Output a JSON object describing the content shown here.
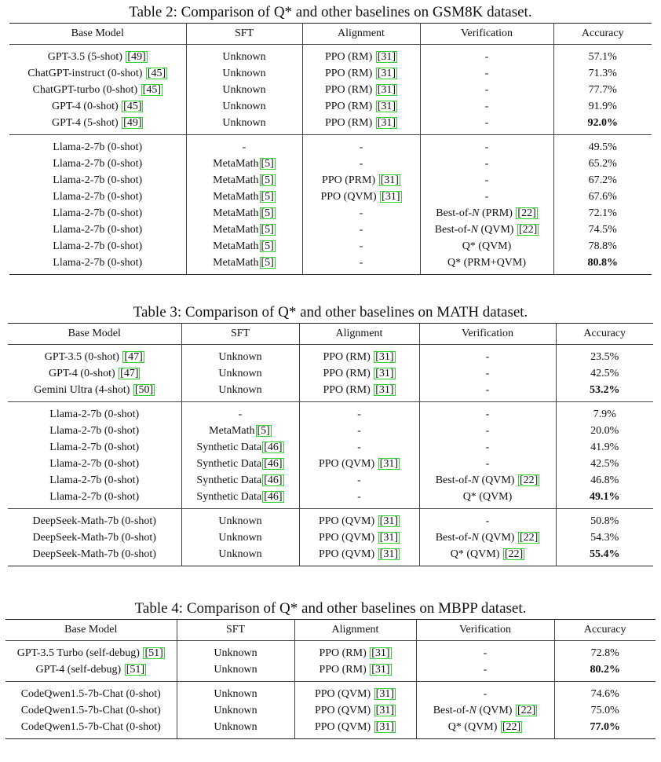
{
  "tables": [
    {
      "caption": "Table 2: Comparison of Q* and other baselines on GSM8K dataset.",
      "headers": [
        "Base Model",
        "SFT",
        "Alignment",
        "Verification",
        "Accuracy"
      ],
      "groups": [
        [
          [
            {
              "t": "GPT-3.5 (5-shot) ",
              "ref": "[49]"
            },
            {
              "t": "Unknown"
            },
            {
              "t": "PPO (RM) ",
              "ref": "[31]"
            },
            {
              "t": "-"
            },
            {
              "t": "57.1%"
            }
          ],
          [
            {
              "t": "ChatGPT-instruct (0-shot) ",
              "ref": "[45]"
            },
            {
              "t": "Unknown"
            },
            {
              "t": "PPO (RM) ",
              "ref": "[31]"
            },
            {
              "t": "-"
            },
            {
              "t": "71.3%"
            }
          ],
          [
            {
              "t": "ChatGPT-turbo (0-shot) ",
              "ref": "[45]"
            },
            {
              "t": "Unknown"
            },
            {
              "t": "PPO (RM) ",
              "ref": "[31]"
            },
            {
              "t": "-"
            },
            {
              "t": "77.7%"
            }
          ],
          [
            {
              "t": "GPT-4 (0-shot) ",
              "ref": "[45]"
            },
            {
              "t": "Unknown"
            },
            {
              "t": "PPO (RM) ",
              "ref": "[31]"
            },
            {
              "t": "-"
            },
            {
              "t": "91.9%"
            }
          ],
          [
            {
              "t": "GPT-4 (5-shot) ",
              "ref": "[49]"
            },
            {
              "t": "Unknown"
            },
            {
              "t": "PPO (RM) ",
              "ref": "[31]"
            },
            {
              "t": "-"
            },
            {
              "t": "92.0%",
              "bold": true
            }
          ]
        ],
        [
          [
            {
              "t": "Llama-2-7b (0-shot)"
            },
            {
              "t": "-"
            },
            {
              "t": "-"
            },
            {
              "t": "-"
            },
            {
              "t": "49.5%"
            }
          ],
          [
            {
              "t": "Llama-2-7b (0-shot)"
            },
            {
              "t": "MetaMath",
              "ref": "[5]"
            },
            {
              "t": "-"
            },
            {
              "t": "-"
            },
            {
              "t": "65.2%"
            }
          ],
          [
            {
              "t": "Llama-2-7b (0-shot)"
            },
            {
              "t": "MetaMath",
              "ref": "[5]"
            },
            {
              "t": "PPO (PRM) ",
              "ref": "[31]"
            },
            {
              "t": "-"
            },
            {
              "t": "67.2%"
            }
          ],
          [
            {
              "t": "Llama-2-7b (0-shot)"
            },
            {
              "t": "MetaMath",
              "ref": "[5]"
            },
            {
              "t": "PPO (QVM) ",
              "ref": "[31]"
            },
            {
              "t": "-"
            },
            {
              "t": "67.6%"
            }
          ],
          [
            {
              "t": "Llama-2-7b (0-shot)"
            },
            {
              "t": "MetaMath",
              "ref": "[5]"
            },
            {
              "t": "-"
            },
            {
              "t": "Best-of-",
              "it": "N",
              "t2": " (PRM) ",
              "ref": "[22]"
            },
            {
              "t": "72.1%"
            }
          ],
          [
            {
              "t": "Llama-2-7b (0-shot)"
            },
            {
              "t": "MetaMath",
              "ref": "[5]"
            },
            {
              "t": "-"
            },
            {
              "t": "Best-of-",
              "it": "N",
              "t2": " (QVM) ",
              "ref": "[22]"
            },
            {
              "t": "74.5%"
            }
          ],
          [
            {
              "t": "Llama-2-7b (0-shot)"
            },
            {
              "t": "MetaMath",
              "ref": "[5]"
            },
            {
              "t": "-"
            },
            {
              "t": "Q* (QVM)"
            },
            {
              "t": "78.8%"
            }
          ],
          [
            {
              "t": "Llama-2-7b (0-shot)"
            },
            {
              "t": "MetaMath",
              "ref": "[5]"
            },
            {
              "t": "-"
            },
            {
              "t": "Q* (PRM+QVM)"
            },
            {
              "t": "80.8%",
              "bold": true
            }
          ]
        ]
      ]
    },
    {
      "caption": "Table 3: Comparison of Q* and other baselines on MATH dataset.",
      "headers": [
        "Base Model",
        "SFT",
        "Alignment",
        "Verification",
        "Accuracy"
      ],
      "groups": [
        [
          [
            {
              "t": "GPT-3.5 (0-shot) ",
              "ref": "[47]"
            },
            {
              "t": "Unknown"
            },
            {
              "t": "PPO (RM) ",
              "ref": "[31]"
            },
            {
              "t": "-"
            },
            {
              "t": "23.5%"
            }
          ],
          [
            {
              "t": "GPT-4 (0-shot) ",
              "ref": "[47]"
            },
            {
              "t": "Unknown"
            },
            {
              "t": "PPO (RM) ",
              "ref": "[31]"
            },
            {
              "t": "-"
            },
            {
              "t": "42.5%"
            }
          ],
          [
            {
              "t": "Gemini Ultra (4-shot) ",
              "ref": "[50]"
            },
            {
              "t": "Unknown"
            },
            {
              "t": "PPO (RM) ",
              "ref": "[31]"
            },
            {
              "t": "-"
            },
            {
              "t": "53.2%",
              "bold": true
            }
          ]
        ],
        [
          [
            {
              "t": "Llama-2-7b (0-shot)"
            },
            {
              "t": "-"
            },
            {
              "t": "-"
            },
            {
              "t": "-"
            },
            {
              "t": "7.9%"
            }
          ],
          [
            {
              "t": "Llama-2-7b (0-shot)"
            },
            {
              "t": "MetaMath",
              "ref": "[5]"
            },
            {
              "t": "-"
            },
            {
              "t": "-"
            },
            {
              "t": "20.0%"
            }
          ],
          [
            {
              "t": "Llama-2-7b (0-shot)"
            },
            {
              "t": "Synthetic Data",
              "ref": "[46]"
            },
            {
              "t": "-"
            },
            {
              "t": "-"
            },
            {
              "t": "41.9%"
            }
          ],
          [
            {
              "t": "Llama-2-7b (0-shot)"
            },
            {
              "t": "Synthetic Data",
              "ref": "[46]"
            },
            {
              "t": "PPO (QVM) ",
              "ref": "[31]"
            },
            {
              "t": "-"
            },
            {
              "t": "42.5%"
            }
          ],
          [
            {
              "t": "Llama-2-7b (0-shot)"
            },
            {
              "t": "Synthetic Data",
              "ref": "[46]"
            },
            {
              "t": "-"
            },
            {
              "t": "Best-of-",
              "it": "N",
              "t2": " (QVM) ",
              "ref": "[22]"
            },
            {
              "t": "46.8%"
            }
          ],
          [
            {
              "t": "Llama-2-7b (0-shot)"
            },
            {
              "t": "Synthetic Data",
              "ref": "[46]"
            },
            {
              "t": "-"
            },
            {
              "t": "Q* (QVM)"
            },
            {
              "t": "49.1%",
              "bold": true
            }
          ]
        ],
        [
          [
            {
              "t": "DeepSeek-Math-7b (0-shot)"
            },
            {
              "t": "Unknown"
            },
            {
              "t": "PPO (QVM) ",
              "ref": "[31]"
            },
            {
              "t": "-"
            },
            {
              "t": "50.8%"
            }
          ],
          [
            {
              "t": "DeepSeek-Math-7b (0-shot)"
            },
            {
              "t": "Unknown"
            },
            {
              "t": "PPO (QVM) ",
              "ref": "[31]"
            },
            {
              "t": "Best-of-",
              "it": "N",
              "t2": " (QVM) ",
              "ref": "[22]"
            },
            {
              "t": "54.3%"
            }
          ],
          [
            {
              "t": "DeepSeek-Math-7b (0-shot)"
            },
            {
              "t": "Unknown"
            },
            {
              "t": "PPO (QVM) ",
              "ref": "[31]"
            },
            {
              "t": "Q* (QVM) ",
              "ref": "[22]"
            },
            {
              "t": "55.4%",
              "bold": true
            }
          ]
        ]
      ]
    },
    {
      "caption": "Table 4: Comparison of Q* and other baselines on MBPP dataset.",
      "headers": [
        "Base Model",
        "SFT",
        "Alignment",
        "Verification",
        "Accuracy"
      ],
      "groups": [
        [
          [
            {
              "t": "GPT-3.5 Turbo (self-debug) ",
              "ref": "[51]"
            },
            {
              "t": "Unknown"
            },
            {
              "t": "PPO (RM) ",
              "ref": "[31]"
            },
            {
              "t": "-"
            },
            {
              "t": "72.8%"
            }
          ],
          [
            {
              "t": "GPT-4 (self-debug) ",
              "ref": "[51]"
            },
            {
              "t": "Unknown"
            },
            {
              "t": "PPO (RM) ",
              "ref": "[31]"
            },
            {
              "t": "-"
            },
            {
              "t": "80.2%",
              "bold": true
            }
          ]
        ],
        [
          [
            {
              "t": "CodeQwen1.5-7b-Chat (0-shot)"
            },
            {
              "t": "Unknown"
            },
            {
              "t": "PPO (QVM) ",
              "ref": "[31]"
            },
            {
              "t": "-"
            },
            {
              "t": "74.6%"
            }
          ],
          [
            {
              "t": "CodeQwen1.5-7b-Chat (0-shot)"
            },
            {
              "t": "Unknown"
            },
            {
              "t": "PPO (QVM) ",
              "ref": "[31]"
            },
            {
              "t": "Best-of-",
              "it": "N",
              "t2": " (QVM) ",
              "ref": "[22]"
            },
            {
              "t": "75.0%"
            }
          ],
          [
            {
              "t": "CodeQwen1.5-7b-Chat (0-shot)"
            },
            {
              "t": "Unknown"
            },
            {
              "t": "PPO (QVM) ",
              "ref": "[31]"
            },
            {
              "t": "Q* (QVM) ",
              "ref": "[22]"
            },
            {
              "t": "77.0%",
              "bold": true
            }
          ]
        ]
      ]
    }
  ]
}
